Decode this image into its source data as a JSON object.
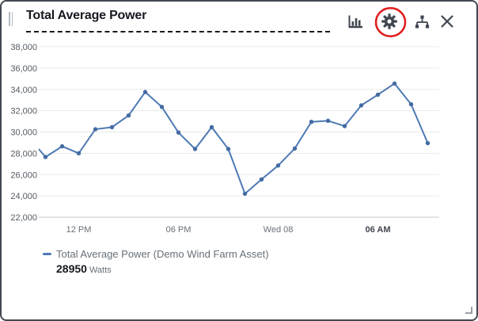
{
  "header": {
    "title": "Total Average Power",
    "buttons": [
      {
        "name": "bar-chart-button",
        "icon": "bar-chart-icon"
      },
      {
        "name": "settings-button",
        "icon": "gear-icon",
        "annotated": true
      },
      {
        "name": "hierarchy-button",
        "icon": "hierarchy-icon"
      },
      {
        "name": "close-button",
        "icon": "close-icon"
      }
    ],
    "annotation_color": "#e0201f",
    "icon_color": "#414750"
  },
  "chart_data": {
    "type": "line",
    "title": "Total Average Power",
    "xlabel": "",
    "ylabel": "",
    "ylim": [
      22000,
      38000
    ],
    "y_tick_step": 2000,
    "y_tick_labels": [
      "38,000",
      "36,000",
      "34,000",
      "32,000",
      "30,000",
      "28,000",
      "26,000",
      "24,000",
      "22,000"
    ],
    "x_tick_labels": [
      {
        "label": "12 PM",
        "point_index": 2,
        "bold": false
      },
      {
        "label": "06 PM",
        "point_index": 8,
        "bold": false
      },
      {
        "label": "Wed 08",
        "point_index": 14,
        "bold": false
      },
      {
        "label": "06 AM",
        "point_index": 20,
        "bold": true
      }
    ],
    "grid": true,
    "legend_position": "bottom-left",
    "series": [
      {
        "name": "Total Average Power (Demo Wind Farm Asset)",
        "unit": "Watts",
        "color": "#4e7ab5",
        "marker_color": "#446ba3",
        "edge_entry_value": 28400,
        "x": [
          "10 AM",
          "11 AM",
          "12 PM",
          "1 PM",
          "2 PM",
          "3 PM",
          "4 PM",
          "5 PM",
          "6 PM",
          "7 PM",
          "8 PM",
          "9 PM",
          "10 PM",
          "11 PM",
          "Wed 08 12 AM",
          "1 AM",
          "2 AM",
          "3 AM",
          "4 AM",
          "5 AM",
          "6 AM",
          "7 AM",
          "8 AM",
          "9 AM"
        ],
        "values": [
          27650,
          28650,
          28000,
          30250,
          30450,
          31550,
          33750,
          32350,
          29950,
          28400,
          30450,
          28400,
          24200,
          25550,
          26850,
          28450,
          30950,
          31050,
          30550,
          32500,
          33500,
          34550,
          32600,
          28950
        ]
      }
    ],
    "grid_color": "#e9e9e9",
    "baseline_color": "#c5cad1",
    "y_label_color": "#545b64",
    "x_label_color": "#687078",
    "x_label_bold_color": "#424650"
  },
  "legend": {
    "series_label": "Total Average Power (Demo Wind Farm Asset)",
    "value": "28950",
    "unit": "Watts"
  }
}
